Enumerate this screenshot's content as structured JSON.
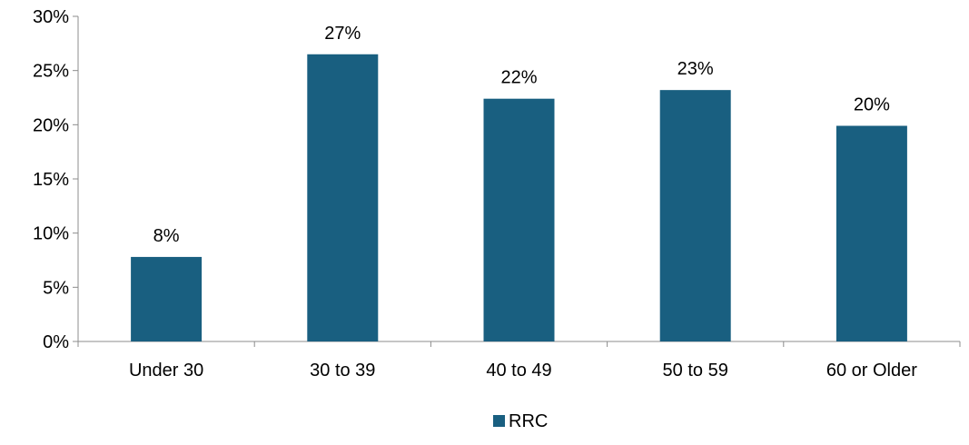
{
  "colors": {
    "bar": "#195f80",
    "axis": "#8c8c8c",
    "text": "#000000"
  },
  "chart_data": {
    "type": "bar",
    "title": "",
    "xlabel": "",
    "ylabel": "",
    "categories": [
      "Under 30",
      "30 to 39",
      "40 to 49",
      "50 to 59",
      "60 or Older"
    ],
    "series": [
      {
        "name": "RRC",
        "values": [
          7.8,
          26.5,
          22.4,
          23.2,
          19.9
        ],
        "data_labels": [
          "8%",
          "27%",
          "22%",
          "23%",
          "20%"
        ]
      }
    ],
    "ylim": [
      0,
      30
    ],
    "yticks": [
      0,
      5,
      10,
      15,
      20,
      25,
      30
    ],
    "ytick_labels": [
      "0%",
      "5%",
      "10%",
      "15%",
      "20%",
      "25%",
      "30%"
    ],
    "grid": false,
    "legend_position": "bottom"
  }
}
